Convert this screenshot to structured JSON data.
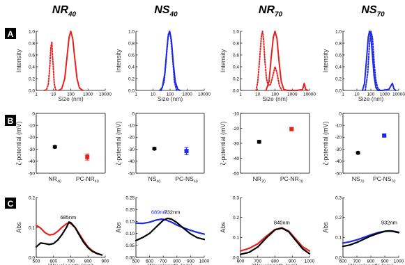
{
  "colors": {
    "red": "#e8201c",
    "blue": "#1d28e0",
    "black": "#000000",
    "panel_label_bg": "#000000",
    "panel_label_fg": "#ffffff"
  },
  "sample_titles": [
    {
      "base": "NR",
      "sub": "40"
    },
    {
      "base": "NS",
      "sub": "40"
    },
    {
      "base": "NR",
      "sub": "70"
    },
    {
      "base": "NS",
      "sub": "70"
    }
  ],
  "row_labels": [
    "A",
    "B",
    "C"
  ],
  "chart_data": [
    {
      "panel": "A",
      "sample": "NR40",
      "type": "line",
      "xlabel": "Size (nm)",
      "ylabel": "Intensity",
      "xscale": "log",
      "xlim": [
        1,
        10000
      ],
      "ylim": [
        0,
        1.0
      ],
      "xticks": [
        "1",
        "10",
        "100",
        "1000",
        "10000"
      ],
      "yticks": [
        "0.0",
        "0.2",
        "0.4",
        "0.6",
        "0.8",
        "1.0"
      ],
      "series": [
        {
          "color": "#e8201c",
          "style": "dotted",
          "x": [
            3,
            4,
            5,
            6,
            7,
            8,
            9,
            11,
            13,
            15
          ],
          "y": [
            0,
            0.02,
            0.1,
            0.38,
            0.72,
            0.82,
            0.55,
            0.12,
            0.02,
            0
          ]
        },
        {
          "color": "#e8201c",
          "style": "solid",
          "x": [
            20,
            30,
            45,
            60,
            80,
            100,
            130,
            170,
            230,
            320,
            500
          ],
          "y": [
            0,
            0.03,
            0.2,
            0.55,
            0.9,
            1.0,
            0.88,
            0.55,
            0.2,
            0.04,
            0
          ]
        }
      ]
    },
    {
      "panel": "A",
      "sample": "NS40",
      "type": "line",
      "xlabel": "Size (nm)",
      "ylabel": "Intensity",
      "xscale": "log",
      "xlim": [
        1,
        10000
      ],
      "ylim": [
        0,
        1.0
      ],
      "xticks": [
        "1",
        "10",
        "100",
        "1000",
        "10000"
      ],
      "yticks": [
        "0.0",
        "0.2",
        "0.4",
        "0.6",
        "0.8",
        "1.0"
      ],
      "series": [
        {
          "color": "#1d28e0",
          "style": "dotted",
          "x": [
            30,
            45,
            60,
            75,
            90,
            110,
            140,
            180,
            240
          ],
          "y": [
            0,
            0.15,
            0.55,
            0.88,
            1.0,
            0.9,
            0.55,
            0.15,
            0
          ]
        },
        {
          "color": "#1d28e0",
          "style": "solid",
          "x": [
            25,
            35,
            50,
            65,
            80,
            95,
            120,
            150,
            200,
            280,
            380
          ],
          "y": [
            0,
            0.05,
            0.3,
            0.7,
            0.95,
            1.0,
            0.85,
            0.5,
            0.15,
            0.02,
            0
          ]
        }
      ]
    },
    {
      "panel": "A",
      "sample": "NR70",
      "type": "line",
      "xlabel": "Size (nm)",
      "ylabel": "Intensity",
      "xscale": "log",
      "xlim": [
        1,
        10000
      ],
      "ylim": [
        0,
        1.0
      ],
      "xticks": [
        "1",
        "10",
        "100",
        "1000",
        "10000"
      ],
      "yticks": [
        "0.0",
        "0.2",
        "0.4",
        "0.6",
        "0.8",
        "1.0"
      ],
      "series": [
        {
          "color": "#e8201c",
          "style": "dotted",
          "x": [
            8,
            10,
            13,
            16,
            19,
            22,
            26,
            32,
            40,
            55,
            75,
            100,
            130,
            180,
            250
          ],
          "y": [
            0,
            0.15,
            0.55,
            0.9,
            1.0,
            0.85,
            0.5,
            0.2,
            0.08,
            0.1,
            0.25,
            0.4,
            0.3,
            0.08,
            0
          ]
        },
        {
          "color": "#e8201c",
          "style": "solid",
          "x": [
            30,
            45,
            60,
            80,
            100,
            130,
            170,
            230,
            320,
            500,
            2000,
            4000,
            5000,
            6000,
            8000
          ],
          "y": [
            0,
            0.15,
            0.55,
            0.9,
            1.0,
            0.88,
            0.5,
            0.15,
            0.02,
            0,
            0,
            0.02,
            0.12,
            0.02,
            0
          ]
        }
      ]
    },
    {
      "panel": "A",
      "sample": "NS70",
      "type": "line",
      "xlabel": "Size (nm)",
      "ylabel": "Intensity",
      "xscale": "log",
      "xlim": [
        1,
        10000
      ],
      "ylim": [
        0,
        1.0
      ],
      "xticks": [
        "1",
        "10",
        "100",
        "1000",
        "10000"
      ],
      "yticks": [
        "0.0",
        "0.2",
        "0.4",
        "0.6",
        "0.8",
        "1.0"
      ],
      "series": [
        {
          "color": "#1d28e0",
          "style": "dotted",
          "x": [
            40,
            60,
            80,
            100,
            130,
            170,
            220,
            300,
            450
          ],
          "y": [
            0,
            0.3,
            0.8,
            1.0,
            0.9,
            0.5,
            0.2,
            0.05,
            0
          ]
        },
        {
          "color": "#1d28e0",
          "style": "solid",
          "x": [
            25,
            35,
            50,
            65,
            80,
            100,
            130,
            170,
            230,
            320,
            700,
            2000,
            3500,
            4500,
            6000
          ],
          "y": [
            0,
            0.12,
            0.55,
            0.9,
            1.0,
            0.92,
            0.6,
            0.25,
            0.05,
            0,
            0,
            0.02,
            0.12,
            0.03,
            0
          ]
        }
      ]
    },
    {
      "panel": "B",
      "sample": "NR40",
      "type": "scatter",
      "ylabel": "ζ-potential (mV)",
      "ylim": [
        -50,
        0
      ],
      "yticks": [
        "0",
        "-10",
        "-20",
        "-30",
        "-40",
        "-50"
      ],
      "points": [
        {
          "label": "NR",
          "sub": "40",
          "value": -28,
          "err": 1,
          "color": "#000000",
          "marker": "circle"
        },
        {
          "label": "PC-NR",
          "sub": "40",
          "value": -36.5,
          "err": 2.5,
          "color": "#e8201c",
          "marker": "square"
        }
      ]
    },
    {
      "panel": "B",
      "sample": "NS40",
      "type": "scatter",
      "ylabel": "ζ-potential (mV)",
      "ylim": [
        -50,
        0
      ],
      "yticks": [
        "0",
        "-10",
        "-20",
        "-30",
        "-40",
        "-50"
      ],
      "points": [
        {
          "label": "NS",
          "sub": "40",
          "value": -29.5,
          "err": 1,
          "color": "#000000",
          "marker": "circle"
        },
        {
          "label": "PC-NS",
          "sub": "40",
          "value": -31.5,
          "err": 3,
          "color": "#1d28e0",
          "marker": "square"
        }
      ]
    },
    {
      "panel": "B",
      "sample": "NR70",
      "type": "scatter",
      "ylabel": "ζ-potential (mV)",
      "ylim": [
        -50,
        -10
      ],
      "yticks": [
        "-10",
        "-20",
        "-30",
        "-40",
        "-50"
      ],
      "points": [
        {
          "label": "NR",
          "sub": "70",
          "value": -29,
          "err": 1,
          "color": "#000000",
          "marker": "circle"
        },
        {
          "label": "PC-NR",
          "sub": "70",
          "value": -20.5,
          "err": 1,
          "color": "#e8201c",
          "marker": "square"
        }
      ]
    },
    {
      "panel": "B",
      "sample": "NS70",
      "type": "scatter",
      "ylabel": "ζ-potential (mV)",
      "ylim": [
        -50,
        0
      ],
      "yticks": [
        "0",
        "-10",
        "-20",
        "-30",
        "-40",
        "-50"
      ],
      "points": [
        {
          "label": "NS",
          "sub": "70",
          "value": -33,
          "err": 1,
          "color": "#000000",
          "marker": "circle"
        },
        {
          "label": "PC-NS",
          "sub": "70",
          "value": -18.5,
          "err": 1,
          "color": "#1d28e0",
          "marker": "square"
        }
      ]
    },
    {
      "panel": "C",
      "sample": "NR40",
      "type": "line",
      "xlabel": "Wavelength (nm)",
      "ylabel": "Abs",
      "xlim": [
        500,
        900
      ],
      "ylim": [
        0,
        0.2
      ],
      "xticks": [
        "500",
        "600",
        "700",
        "800",
        "900"
      ],
      "yticks": [
        "0.0",
        "0.1",
        "0.2"
      ],
      "annotation": {
        "text": "685nm",
        "x": 685,
        "y": 0.128,
        "color": "#000000"
      },
      "series": [
        {
          "color": "#e8201c",
          "x": [
            500,
            525,
            550,
            575,
            600,
            625,
            650,
            675,
            685,
            700,
            725,
            750,
            775,
            800,
            825,
            850,
            880
          ],
          "y": [
            0.107,
            0.098,
            0.083,
            0.075,
            0.077,
            0.087,
            0.101,
            0.112,
            0.115,
            0.113,
            0.1,
            0.078,
            0.055,
            0.035,
            0.022,
            0.014,
            0.008
          ]
        },
        {
          "color": "#000000",
          "x": [
            500,
            525,
            550,
            575,
            600,
            625,
            650,
            675,
            690,
            700,
            725,
            750,
            775,
            800,
            825,
            850,
            880
          ],
          "y": [
            0.035,
            0.048,
            0.046,
            0.043,
            0.046,
            0.058,
            0.077,
            0.1,
            0.118,
            0.116,
            0.1,
            0.074,
            0.05,
            0.032,
            0.02,
            0.013,
            0.008
          ]
        }
      ]
    },
    {
      "panel": "C",
      "sample": "NS40",
      "type": "line",
      "xlabel": "Wavelength (nm)",
      "ylabel": "Abs",
      "xlim": [
        500,
        1000
      ],
      "ylim": [
        0,
        0.25
      ],
      "xticks": [
        "500",
        "600",
        "700",
        "800",
        "900",
        "1000"
      ],
      "yticks": [
        "0.00",
        "0.05",
        "0.10",
        "0.15",
        "0.20",
        "0.25"
      ],
      "annotations": [
        {
          "text": "689nm",
          "x": 670,
          "y": 0.182,
          "color": "#1d28e0"
        },
        {
          "text": "732nm",
          "x": 765,
          "y": 0.182,
          "color": "#000000"
        }
      ],
      "series": [
        {
          "color": "#1d28e0",
          "x": [
            500,
            550,
            600,
            650,
            689,
            720,
            760,
            800,
            850,
            900,
            950,
            1000
          ],
          "y": [
            0.143,
            0.142,
            0.147,
            0.156,
            0.16,
            0.156,
            0.147,
            0.135,
            0.123,
            0.113,
            0.104,
            0.097
          ]
        },
        {
          "color": "#000000",
          "x": [
            500,
            550,
            600,
            650,
            700,
            732,
            760,
            800,
            850,
            900,
            950,
            1000
          ],
          "y": [
            0.07,
            0.083,
            0.1,
            0.128,
            0.155,
            0.163,
            0.16,
            0.145,
            0.121,
            0.098,
            0.082,
            0.075
          ]
        }
      ]
    },
    {
      "panel": "C",
      "sample": "NR70",
      "type": "line",
      "xlabel": "Wavelength (nm)",
      "ylabel": "Abs",
      "xlim": [
        600,
        1000
      ],
      "ylim": [
        0,
        0.3
      ],
      "xticks": [
        "600",
        "700",
        "800",
        "900",
        "1000"
      ],
      "yticks": [
        "0.0",
        "0.1",
        "0.2",
        "0.3"
      ],
      "annotation": {
        "text": "840nm",
        "x": 840,
        "y": 0.165,
        "color": "#000000"
      },
      "series": [
        {
          "color": "#e8201c",
          "x": [
            600,
            650,
            700,
            750,
            800,
            840,
            880,
            920,
            960,
            1000
          ],
          "y": [
            0.032,
            0.045,
            0.068,
            0.106,
            0.14,
            0.148,
            0.132,
            0.092,
            0.053,
            0.032
          ]
        },
        {
          "color": "#000000",
          "x": [
            600,
            650,
            700,
            750,
            800,
            840,
            880,
            920,
            960,
            1000
          ],
          "y": [
            0.015,
            0.025,
            0.052,
            0.098,
            0.138,
            0.147,
            0.128,
            0.085,
            0.043,
            0.018
          ]
        }
      ]
    },
    {
      "panel": "C",
      "sample": "NS70",
      "type": "line",
      "xlabel": "Wavelength (nm)",
      "ylabel": "Abs",
      "xlim": [
        600,
        1000
      ],
      "ylim": [
        0,
        0.3
      ],
      "xticks": [
        "600",
        "700",
        "800",
        "900",
        "1000"
      ],
      "yticks": [
        "0.0",
        "0.1",
        "0.2",
        "0.3"
      ],
      "annotation": {
        "text": "932nm",
        "x": 932,
        "y": 0.165,
        "color": "#000000"
      },
      "series": [
        {
          "color": "#1d28e0",
          "x": [
            600,
            650,
            700,
            750,
            800,
            850,
            900,
            932,
            960,
            1000
          ],
          "y": [
            0.072,
            0.078,
            0.088,
            0.1,
            0.113,
            0.124,
            0.131,
            0.133,
            0.132,
            0.126
          ]
        },
        {
          "color": "#000000",
          "x": [
            600,
            650,
            700,
            750,
            800,
            850,
            900,
            932,
            960,
            1000
          ],
          "y": [
            0.055,
            0.062,
            0.075,
            0.091,
            0.107,
            0.12,
            0.13,
            0.132,
            0.13,
            0.124
          ]
        }
      ]
    }
  ]
}
